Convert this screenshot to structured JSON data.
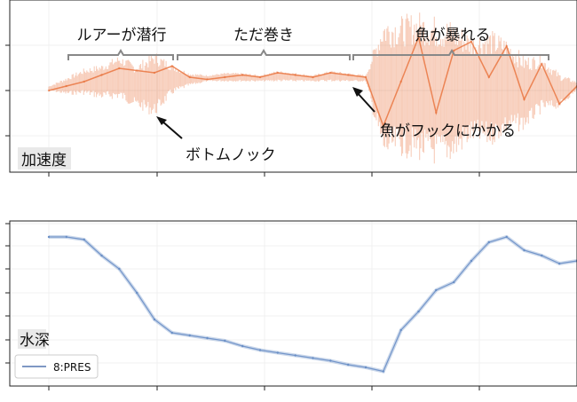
{
  "chart_data": [
    {
      "type": "line",
      "panel_label": "加速度",
      "annotations": {
        "segments": [
          "ルアーが潜行",
          "ただ巻き",
          "魚が暴れる"
        ],
        "arrows": [
          "ボトムノック",
          "魚がフックにかかる"
        ]
      },
      "series": [
        {
          "color": "#e8703a",
          "x": [
            0,
            2,
            4,
            6,
            8,
            10,
            12,
            14,
            16,
            18,
            20,
            22,
            24,
            26,
            28,
            30,
            32,
            34,
            36,
            38,
            40,
            42,
            44,
            46,
            48,
            50,
            52,
            54,
            56,
            58,
            60
          ],
          "y": [
            0.0,
            0.1,
            0.2,
            0.35,
            0.5,
            0.45,
            0.4,
            0.55,
            0.3,
            0.25,
            0.3,
            0.35,
            0.3,
            0.4,
            0.35,
            0.3,
            0.4,
            0.35,
            0.3,
            -0.8,
            0.2,
            1.2,
            -0.5,
            0.9,
            1.1,
            0.3,
            1.0,
            -0.2,
            0.6,
            -0.3,
            0.1
          ],
          "band_low": [
            0.0,
            -0.1,
            -0.1,
            -0.2,
            -0.2,
            -0.4,
            -0.6,
            -0.1,
            0.1,
            0.2,
            0.2,
            0.2,
            0.2,
            0.2,
            0.2,
            0.2,
            0.2,
            0.2,
            0.2,
            -1.6,
            -1.5,
            -1.6,
            -1.7,
            -1.6,
            -1.2,
            -1.3,
            -1.0,
            -0.9,
            -0.5,
            -0.4,
            0.0
          ],
          "band_high": [
            0.1,
            0.3,
            0.5,
            0.6,
            0.8,
            0.6,
            0.9,
            0.6,
            0.4,
            0.35,
            0.4,
            0.4,
            0.35,
            0.45,
            0.4,
            0.35,
            0.45,
            0.4,
            0.35,
            1.7,
            1.7,
            1.8,
            1.7,
            1.6,
            1.3,
            1.4,
            1.2,
            0.8,
            0.8,
            0.4,
            0.2
          ]
        }
      ]
    },
    {
      "type": "line",
      "panel_label": "水深",
      "legend": "8:PRES",
      "series": [
        {
          "name": "8:PRES",
          "color": "#6a8fc6",
          "x": [
            0,
            2,
            4,
            6,
            8,
            10,
            12,
            14,
            16,
            18,
            20,
            22,
            24,
            26,
            28,
            30,
            32,
            34,
            36,
            38,
            40,
            42,
            44,
            46,
            48,
            50,
            52,
            54,
            56,
            58,
            60
          ],
          "y": [
            5.6,
            5.6,
            5.5,
            4.9,
            4.4,
            3.5,
            2.5,
            2.0,
            1.9,
            1.8,
            1.7,
            1.5,
            1.35,
            1.25,
            1.15,
            1.05,
            0.95,
            0.8,
            0.7,
            0.55,
            2.1,
            2.8,
            3.6,
            3.9,
            4.7,
            5.4,
            5.6,
            5.1,
            4.9,
            4.6,
            4.7
          ]
        }
      ]
    }
  ]
}
